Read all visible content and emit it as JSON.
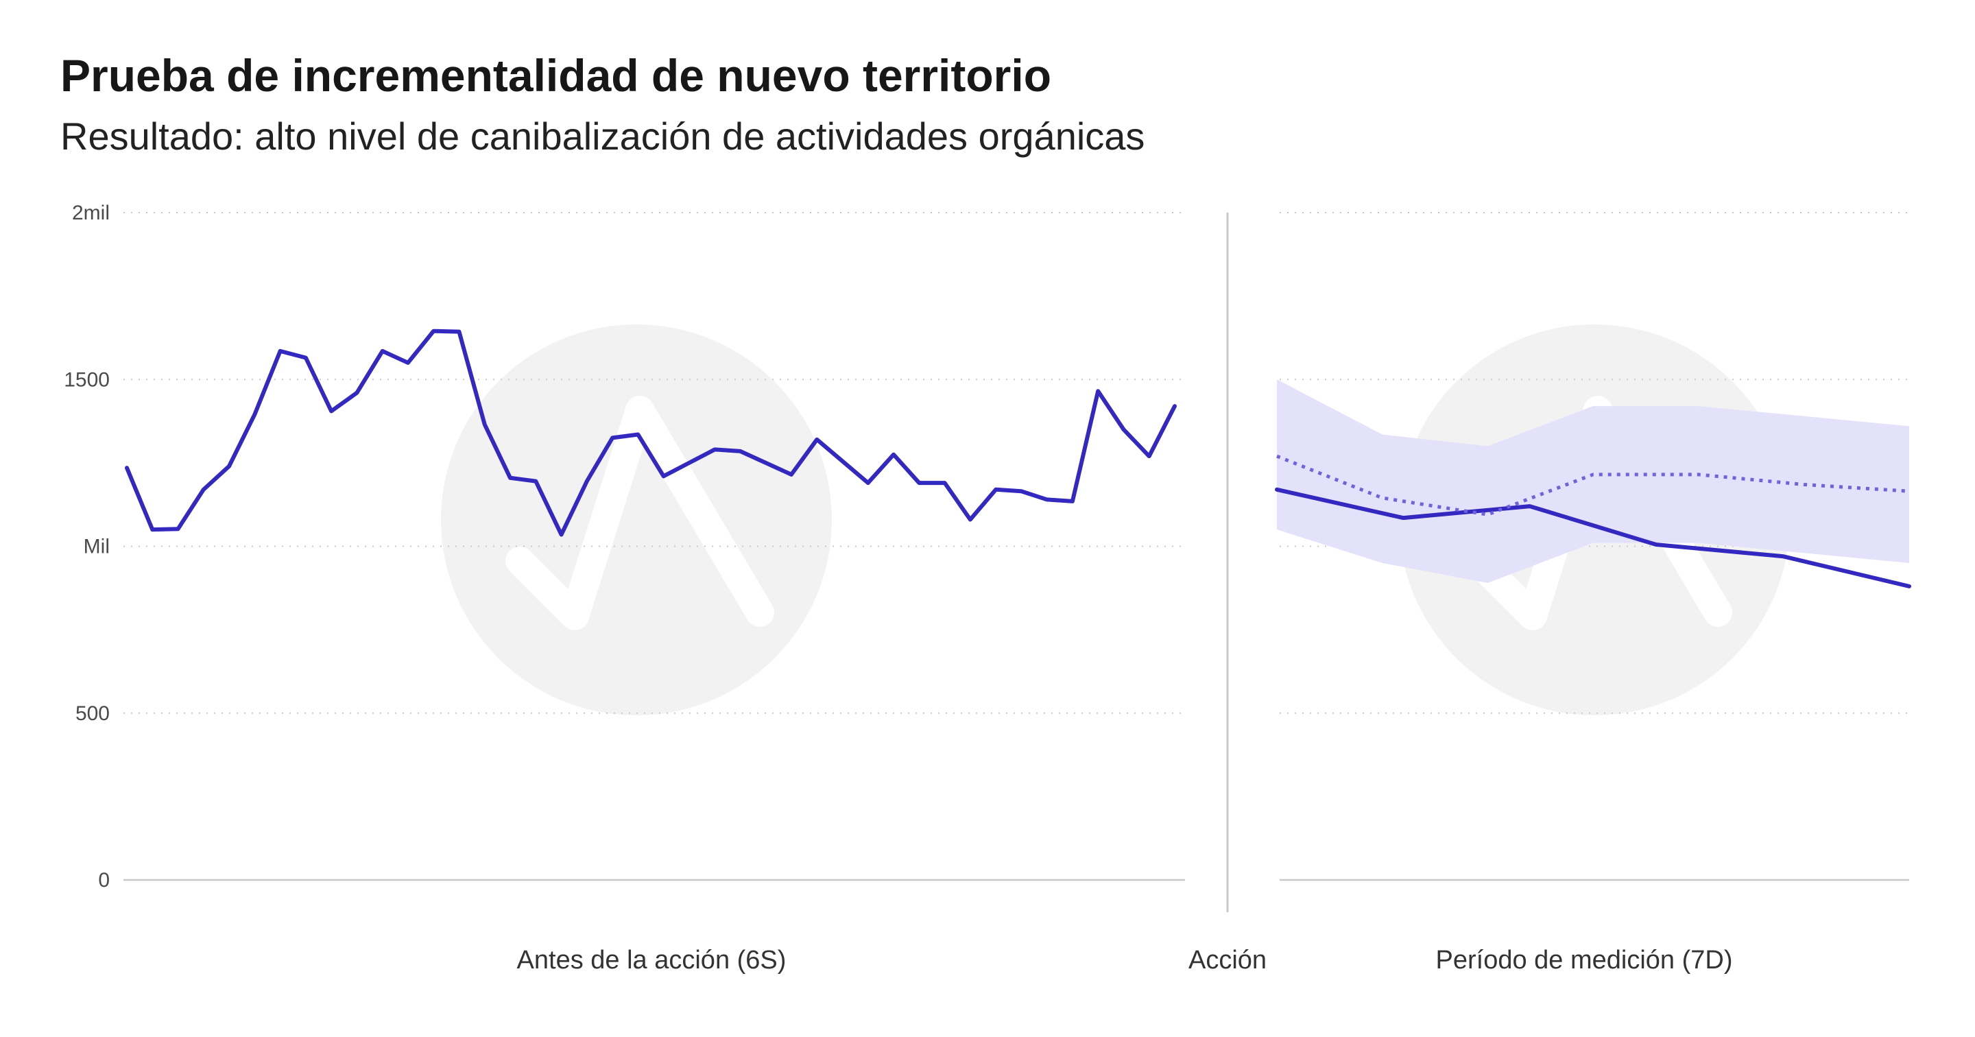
{
  "title": "Prueba de incrementalidad de nuevo territorio",
  "subtitle": "Resultado: alto nivel de canibalización de actividades orgánicas",
  "colors": {
    "series": "#3328c0",
    "band": "#e4e2fb",
    "dotted": "#6f62dd",
    "grid": "#c9c9c9",
    "divider": "#c9c9c9",
    "watermark": "#f2f2f2"
  },
  "chart_data": {
    "type": "line",
    "ylim": [
      0,
      2000
    ],
    "yticks": [
      {
        "value": 0,
        "label": "0"
      },
      {
        "value": 500,
        "label": "500"
      },
      {
        "value": 1000,
        "label": "Mil"
      },
      {
        "value": 1500,
        "label": "1500"
      },
      {
        "value": 2000,
        "label": "2mil"
      }
    ],
    "grid": "dotted horizontal",
    "divider_label": "Acción",
    "panels": [
      {
        "name": "before",
        "xlabel": "Antes de la acción (6S)",
        "series": [
          {
            "name": "actual",
            "style": "solid",
            "values": [
              1235,
              1050,
              1052,
              1170,
              1240,
              1395,
              1585,
              1565,
              1405,
              1460,
              1585,
              1550,
              1645,
              1643,
              1365,
              1205,
              1195,
              1035,
              1195,
              1325,
              1335,
              1210,
              1250,
              1290,
              1285,
              1250,
              1215,
              1320,
              1255,
              1190,
              1275,
              1190,
              1190,
              1080,
              1170,
              1165,
              1140,
              1135,
              1465,
              1350,
              1270,
              1420
            ]
          }
        ]
      },
      {
        "name": "after",
        "xlabel": "Período de medición (7D)",
        "series": [
          {
            "name": "actual",
            "style": "solid",
            "values": [
              1170,
              1085,
              1120,
              1005,
              970,
              880
            ]
          },
          {
            "name": "counterfactual",
            "style": "dotted",
            "values": [
              1270,
              1145,
              1095,
              1215,
              1215,
              1185,
              1165
            ]
          }
        ],
        "band": {
          "upper": [
            1500,
            1335,
            1300,
            1420,
            1420,
            1390,
            1360
          ],
          "lower": [
            1050,
            950,
            890,
            1010,
            1010,
            980,
            950
          ]
        }
      }
    ]
  }
}
